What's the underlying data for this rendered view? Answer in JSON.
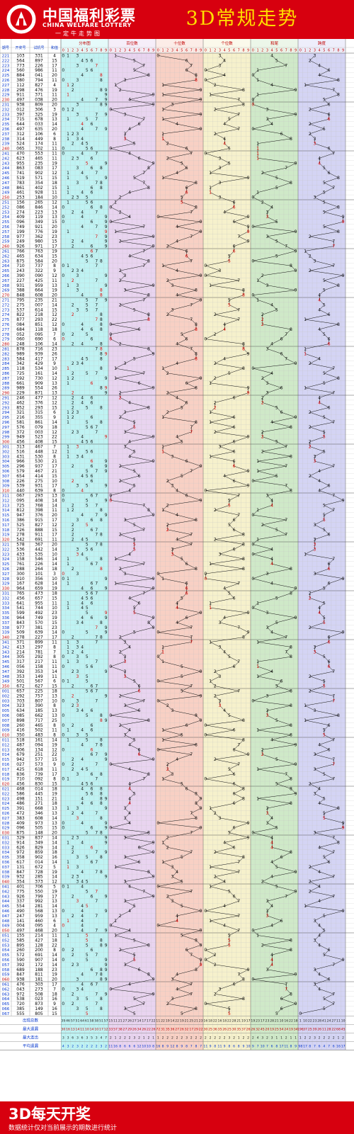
{
  "header": {
    "brand_cn": "中国福利彩票",
    "brand_en": "CHINA WELFARE LOTTERY",
    "brand_sub": "一定牛走势图",
    "title": "3D常规走势"
  },
  "footer": {
    "title": "3D每天开奖",
    "note": "数据统计仅对当前展示的期数进行统计"
  },
  "colors": {
    "brand_red": "#d7000f",
    "title_yellow": "#ffdd00",
    "dist_bg": "#bff3f3",
    "hundreds_bg": "#e9d4f0",
    "tens_bg": "#f8d0c4",
    "units_bg": "#f6f1cc",
    "sum_tail_bg": "#cfe9c8",
    "span_bg": "#d4d4f4",
    "hit_red": "#e00000",
    "hit_blue": "#0033cc",
    "line_black": "#111111"
  },
  "chart_data": {
    "type": "table",
    "columns": [
      "期号",
      "开奖号",
      "试机号",
      "和值"
    ],
    "sections": [
      "分布图",
      "百位数",
      "十位数",
      "个位数",
      "和尾",
      "跨度"
    ],
    "digit_header": [
      "0",
      "1",
      "2",
      "3",
      "4",
      "5",
      "6",
      "7",
      "8",
      "9"
    ],
    "stats_labels": [
      "出现总数",
      "最大遗漏",
      "最大连出",
      "平均遗漏"
    ],
    "rows": [
      {
        "p": "221",
        "d": "103",
        "t": "331",
        "s": "4"
      },
      {
        "p": "222",
        "d": "564",
        "t": "897",
        "s": "15"
      },
      {
        "p": "223",
        "d": "773",
        "t": "226",
        "s": "17"
      },
      {
        "p": "224",
        "d": "560",
        "t": "986",
        "s": "11"
      },
      {
        "p": "225",
        "d": "884",
        "t": "041",
        "s": "20"
      },
      {
        "p": "226",
        "d": "380",
        "t": "794",
        "s": "11"
      },
      {
        "p": "227",
        "d": "112",
        "t": "827",
        "s": "4"
      },
      {
        "p": "228",
        "d": "298",
        "t": "476",
        "s": "19"
      },
      {
        "p": "229",
        "d": "911",
        "t": "371",
        "s": "11"
      },
      {
        "p": "230",
        "d": "497",
        "t": "038",
        "s": "20"
      },
      {
        "p": "231",
        "d": "938",
        "t": "809",
        "s": "20"
      },
      {
        "p": "232",
        "d": "012",
        "t": "306",
        "s": "3"
      },
      {
        "p": "233",
        "d": "397",
        "t": "325",
        "s": "19"
      },
      {
        "p": "234",
        "d": "715",
        "t": "678",
        "s": "13"
      },
      {
        "p": "235",
        "d": "644",
        "t": "033",
        "s": "14"
      },
      {
        "p": "236",
        "d": "497",
        "t": "635",
        "s": "20"
      },
      {
        "p": "237",
        "d": "312",
        "t": "106",
        "s": "6"
      },
      {
        "p": "238",
        "d": "314",
        "t": "449",
        "s": "8"
      },
      {
        "p": "239",
        "d": "524",
        "t": "174",
        "s": "11"
      },
      {
        "p": "240",
        "d": "065",
        "t": "702",
        "s": "11"
      },
      {
        "p": "241",
        "d": "470",
        "t": "553",
        "s": "11"
      },
      {
        "p": "242",
        "d": "623",
        "t": "465",
        "s": "11"
      },
      {
        "p": "243",
        "d": "955",
        "t": "235",
        "s": "19"
      },
      {
        "p": "244",
        "d": "863",
        "t": "083",
        "s": "17"
      },
      {
        "p": "245",
        "d": "741",
        "t": "902",
        "s": "12"
      },
      {
        "p": "246",
        "d": "519",
        "t": "571",
        "s": "15"
      },
      {
        "p": "247",
        "d": "783",
        "t": "354",
        "s": "18"
      },
      {
        "p": "248",
        "d": "861",
        "t": "402",
        "s": "15"
      },
      {
        "p": "249",
        "d": "461",
        "t": "928",
        "s": "11"
      },
      {
        "p": "250",
        "d": "253",
        "t": "184",
        "s": "10"
      },
      {
        "p": "251",
        "d": "156",
        "t": "265",
        "s": "12"
      },
      {
        "p": "252",
        "d": "086",
        "t": "846",
        "s": "14"
      },
      {
        "p": "253",
        "d": "274",
        "t": "223",
        "s": "13"
      },
      {
        "p": "254",
        "d": "409",
        "t": "119",
        "s": "13"
      },
      {
        "p": "255",
        "d": "096",
        "t": "349",
        "s": "15"
      },
      {
        "p": "256",
        "d": "749",
        "t": "921",
        "s": "20"
      },
      {
        "p": "257",
        "d": "199",
        "t": "776",
        "s": "19"
      },
      {
        "p": "258",
        "d": "977",
        "t": "362",
        "s": "23"
      },
      {
        "p": "259",
        "d": "249",
        "t": "980",
        "s": "15"
      },
      {
        "p": "260",
        "d": "926",
        "t": "971",
        "s": "17"
      },
      {
        "p": "261",
        "d": "766",
        "t": "763",
        "s": "19"
      },
      {
        "p": "262",
        "d": "465",
        "t": "634",
        "s": "15"
      },
      {
        "p": "263",
        "d": "875",
        "t": "584",
        "s": "20"
      },
      {
        "p": "264",
        "d": "710",
        "t": "737",
        "s": "8"
      },
      {
        "p": "265",
        "d": "243",
        "t": "322",
        "s": "9"
      },
      {
        "p": "266",
        "d": "390",
        "t": "090",
        "s": "12"
      },
      {
        "p": "267",
        "d": "227",
        "t": "425",
        "s": "11"
      },
      {
        "p": "268",
        "d": "931",
        "t": "959",
        "s": "13"
      },
      {
        "p": "269",
        "d": "388",
        "t": "664",
        "s": "19"
      },
      {
        "p": "270",
        "d": "848",
        "t": "608",
        "s": "20"
      },
      {
        "p": "271",
        "d": "795",
        "t": "235",
        "s": "21"
      },
      {
        "p": "272",
        "d": "275",
        "t": "007",
        "s": "14"
      },
      {
        "p": "273",
        "d": "537",
        "t": "614",
        "s": "15"
      },
      {
        "p": "274",
        "d": "822",
        "t": "218",
        "s": "12"
      },
      {
        "p": "275",
        "d": "877",
        "t": "293",
        "s": "22"
      },
      {
        "p": "276",
        "d": "084",
        "t": "851",
        "s": "12"
      },
      {
        "p": "277",
        "d": "684",
        "t": "118",
        "s": "18"
      },
      {
        "p": "278",
        "d": "052",
        "t": "095",
        "s": "7"
      },
      {
        "p": "279",
        "d": "060",
        "t": "690",
        "s": "6"
      },
      {
        "p": "280",
        "d": "248",
        "t": "106",
        "s": "14"
      },
      {
        "p": "281",
        "d": "878",
        "t": "716",
        "s": "23"
      },
      {
        "p": "282",
        "d": "989",
        "t": "939",
        "s": "26"
      },
      {
        "p": "283",
        "d": "584",
        "t": "417",
        "s": "17"
      },
      {
        "p": "284",
        "d": "342",
        "t": "429",
        "s": "9"
      },
      {
        "p": "285",
        "d": "118",
        "t": "534",
        "s": "10"
      },
      {
        "p": "286",
        "d": "725",
        "t": "161",
        "s": "14"
      },
      {
        "p": "287",
        "d": "192",
        "t": "730",
        "s": "12"
      },
      {
        "p": "288",
        "d": "661",
        "t": "909",
        "s": "13"
      },
      {
        "p": "289",
        "d": "989",
        "t": "554",
        "s": "26"
      },
      {
        "p": "290",
        "d": "229",
        "t": "871",
        "s": "13"
      },
      {
        "p": "291",
        "d": "246",
        "t": "477",
        "s": "12"
      },
      {
        "p": "292",
        "d": "462",
        "t": "376",
        "s": "12"
      },
      {
        "p": "293",
        "d": "852",
        "t": "293",
        "s": "15"
      },
      {
        "p": "294",
        "d": "321",
        "t": "315",
        "s": "6"
      },
      {
        "p": "295",
        "d": "216",
        "t": "355",
        "s": "9"
      },
      {
        "p": "296",
        "d": "581",
        "t": "861",
        "s": "14"
      },
      {
        "p": "297",
        "d": "576",
        "t": "079",
        "s": "18"
      },
      {
        "p": "298",
        "d": "372",
        "t": "003",
        "s": "12"
      },
      {
        "p": "299",
        "d": "949",
        "t": "523",
        "s": "22"
      },
      {
        "p": "300",
        "d": "456",
        "t": "408",
        "s": "15"
      },
      {
        "p": "301",
        "d": "313",
        "t": "467",
        "s": "7"
      },
      {
        "p": "302",
        "d": "516",
        "t": "448",
        "s": "12"
      },
      {
        "p": "303",
        "d": "431",
        "t": "530",
        "s": "8"
      },
      {
        "p": "304",
        "d": "966",
        "t": "530",
        "s": "21"
      },
      {
        "p": "305",
        "d": "296",
        "t": "937",
        "s": "17"
      },
      {
        "p": "306",
        "d": "579",
        "t": "467",
        "s": "21"
      },
      {
        "p": "307",
        "d": "654",
        "t": "414",
        "s": "15"
      },
      {
        "p": "308",
        "d": "226",
        "t": "275",
        "s": "10"
      },
      {
        "p": "309",
        "d": "539",
        "t": "931",
        "s": "17"
      },
      {
        "p": "310",
        "d": "440",
        "t": "639",
        "s": "8"
      },
      {
        "p": "311",
        "d": "067",
        "t": "293",
        "s": "13"
      },
      {
        "p": "312",
        "d": "095",
        "t": "408",
        "s": "14"
      },
      {
        "p": "313",
        "d": "725",
        "t": "768",
        "s": "14"
      },
      {
        "p": "314",
        "d": "812",
        "t": "398",
        "s": "11"
      },
      {
        "p": "315",
        "d": "947",
        "t": "376",
        "s": "20"
      },
      {
        "p": "316",
        "d": "386",
        "t": "915",
        "s": "17"
      },
      {
        "p": "317",
        "d": "525",
        "t": "827",
        "s": "12"
      },
      {
        "p": "318",
        "d": "726",
        "t": "888",
        "s": "15"
      },
      {
        "p": "319",
        "d": "278",
        "t": "911",
        "s": "17"
      },
      {
        "p": "320",
        "d": "542",
        "t": "691",
        "s": "11"
      },
      {
        "p": "321",
        "d": "578",
        "t": "367",
        "s": "20"
      },
      {
        "p": "322",
        "d": "536",
        "t": "442",
        "s": "14"
      },
      {
        "p": "323",
        "d": "433",
        "t": "535",
        "s": "10"
      },
      {
        "p": "324",
        "d": "158",
        "t": "546",
        "s": "14"
      },
      {
        "p": "325",
        "d": "761",
        "t": "226",
        "s": "14"
      },
      {
        "p": "326",
        "d": "288",
        "t": "264",
        "s": "18"
      },
      {
        "p": "327",
        "d": "300",
        "t": "101",
        "s": "3"
      },
      {
        "p": "328",
        "d": "910",
        "t": "356",
        "s": "10"
      },
      {
        "p": "329",
        "d": "167",
        "t": "628",
        "s": "14"
      },
      {
        "p": "330",
        "d": "964",
        "t": "659",
        "s": "19"
      },
      {
        "p": "331",
        "d": "765",
        "t": "473",
        "s": "18"
      },
      {
        "p": "332",
        "d": "456",
        "t": "657",
        "s": "15"
      },
      {
        "p": "333",
        "d": "641",
        "t": "955",
        "s": "11"
      },
      {
        "p": "334",
        "d": "541",
        "t": "744",
        "s": "10"
      },
      {
        "p": "335",
        "d": "599",
        "t": "492",
        "s": "23"
      },
      {
        "p": "336",
        "d": "964",
        "t": "749",
        "s": "19"
      },
      {
        "p": "337",
        "d": "843",
        "t": "570",
        "s": "15"
      },
      {
        "p": "338",
        "d": "977",
        "t": "381",
        "s": "23"
      },
      {
        "p": "339",
        "d": "509",
        "t": "639",
        "s": "14"
      },
      {
        "p": "340",
        "d": "278",
        "t": "227",
        "s": "17"
      },
      {
        "p": "341",
        "d": "371",
        "t": "899",
        "s": "11"
      },
      {
        "p": "342",
        "d": "413",
        "t": "297",
        "s": "8"
      },
      {
        "p": "343",
        "d": "214",
        "t": "781",
        "s": "7"
      },
      {
        "p": "344",
        "d": "305",
        "t": "292",
        "s": "8"
      },
      {
        "p": "345",
        "d": "317",
        "t": "217",
        "s": "11"
      },
      {
        "p": "346",
        "d": "056",
        "t": "158",
        "s": "11"
      },
      {
        "p": "347",
        "d": "392",
        "t": "353",
        "s": "14"
      },
      {
        "p": "348",
        "d": "353",
        "t": "149",
        "s": "11"
      },
      {
        "p": "349",
        "d": "501",
        "t": "567",
        "s": "6"
      },
      {
        "p": "350",
        "d": "672",
        "t": "627",
        "s": "15"
      },
      {
        "p": "001",
        "d": "657",
        "t": "225",
        "s": "18"
      },
      {
        "p": "002",
        "d": "292",
        "t": "757",
        "s": "13"
      },
      {
        "p": "003",
        "d": "703",
        "t": "807",
        "s": "10"
      },
      {
        "p": "004",
        "d": "323",
        "t": "390",
        "s": "8"
      },
      {
        "p": "005",
        "d": "634",
        "t": "185",
        "s": "13"
      },
      {
        "p": "006",
        "d": "085",
        "t": "662",
        "s": "13"
      },
      {
        "p": "007",
        "d": "898",
        "t": "717",
        "s": "25"
      },
      {
        "p": "008",
        "d": "260",
        "t": "465",
        "s": "8"
      },
      {
        "p": "009",
        "d": "416",
        "t": "502",
        "s": "11"
      },
      {
        "p": "010",
        "d": "350",
        "t": "483",
        "s": "8"
      },
      {
        "p": "011",
        "d": "518",
        "t": "161",
        "s": "14"
      },
      {
        "p": "012",
        "d": "487",
        "t": "094",
        "s": "19"
      },
      {
        "p": "013",
        "d": "606",
        "t": "134",
        "s": "12"
      },
      {
        "p": "014",
        "d": "679",
        "t": "251",
        "s": "22"
      },
      {
        "p": "015",
        "d": "942",
        "t": "577",
        "s": "15"
      },
      {
        "p": "016",
        "d": "027",
        "t": "573",
        "s": "9"
      },
      {
        "p": "017",
        "d": "425",
        "t": "618",
        "s": "11"
      },
      {
        "p": "018",
        "d": "836",
        "t": "739",
        "s": "17"
      },
      {
        "p": "019",
        "d": "710",
        "t": "092",
        "s": "8"
      },
      {
        "p": "020",
        "d": "456",
        "t": "830",
        "s": "15"
      },
      {
        "p": "021",
        "d": "468",
        "t": "014",
        "s": "18"
      },
      {
        "p": "022",
        "d": "586",
        "t": "445",
        "s": "19"
      },
      {
        "p": "023",
        "d": "498",
        "t": "151",
        "s": "21"
      },
      {
        "p": "024",
        "d": "486",
        "t": "271",
        "s": "18"
      },
      {
        "p": "025",
        "d": "391",
        "t": "668",
        "s": "13"
      },
      {
        "p": "026",
        "d": "472",
        "t": "346",
        "s": "13"
      },
      {
        "p": "027",
        "d": "383",
        "t": "608",
        "s": "14"
      },
      {
        "p": "028",
        "d": "409",
        "t": "973",
        "s": "13"
      },
      {
        "p": "029",
        "d": "096",
        "t": "505",
        "s": "15"
      },
      {
        "p": "030",
        "d": "875",
        "t": "148",
        "s": "20"
      },
      {
        "p": "031",
        "d": "329",
        "t": "837",
        "s": "14"
      },
      {
        "p": "032",
        "d": "914",
        "t": "349",
        "s": "14"
      },
      {
        "p": "033",
        "d": "626",
        "t": "829",
        "s": "14"
      },
      {
        "p": "034",
        "d": "972",
        "t": "859",
        "s": "18"
      },
      {
        "p": "035",
        "d": "358",
        "t": "902",
        "s": "16"
      },
      {
        "p": "036",
        "d": "617",
        "t": "014",
        "s": "14"
      },
      {
        "p": "037",
        "d": "131",
        "t": "672",
        "s": "5"
      },
      {
        "p": "038",
        "d": "847",
        "t": "728",
        "s": "19"
      },
      {
        "p": "039",
        "d": "932",
        "t": "285",
        "s": "14"
      },
      {
        "p": "040",
        "d": "354",
        "t": "373",
        "s": "12"
      },
      {
        "p": "041",
        "d": "401",
        "t": "706",
        "s": "5"
      },
      {
        "p": "042",
        "d": "775",
        "t": "550",
        "s": "19"
      },
      {
        "p": "043",
        "d": "926",
        "t": "799",
        "s": "17"
      },
      {
        "p": "044",
        "d": "337",
        "t": "992",
        "s": "13"
      },
      {
        "p": "045",
        "d": "554",
        "t": "281",
        "s": "14"
      },
      {
        "p": "046",
        "d": "490",
        "t": "568",
        "s": "13"
      },
      {
        "p": "047",
        "d": "247",
        "t": "959",
        "s": "13"
      },
      {
        "p": "048",
        "d": "141",
        "t": "460",
        "s": "6"
      },
      {
        "p": "049",
        "d": "004",
        "t": "095",
        "s": "4"
      },
      {
        "p": "050",
        "d": "497",
        "t": "468",
        "s": "20"
      },
      {
        "p": "051",
        "d": "155",
        "t": "214",
        "s": "11"
      },
      {
        "p": "052",
        "d": "585",
        "t": "427",
        "s": "18"
      },
      {
        "p": "053",
        "d": "895",
        "t": "128",
        "s": "22"
      },
      {
        "p": "054",
        "d": "260",
        "t": "200",
        "s": "8"
      },
      {
        "p": "055",
        "d": "572",
        "t": "691",
        "s": "14"
      },
      {
        "p": "056",
        "d": "590",
        "t": "907",
        "s": "14"
      },
      {
        "p": "057",
        "d": "392",
        "t": "172",
        "s": "14"
      },
      {
        "p": "058",
        "d": "689",
        "t": "188",
        "s": "23"
      },
      {
        "p": "059",
        "d": "847",
        "t": "811",
        "s": "19"
      },
      {
        "p": "060",
        "d": "938",
        "t": "181",
        "s": "20"
      },
      {
        "p": "061",
        "d": "476",
        "t": "303",
        "s": "17"
      },
      {
        "p": "062",
        "d": "043",
        "t": "273",
        "s": "7"
      },
      {
        "p": "063",
        "d": "972",
        "t": "508",
        "s": "18"
      },
      {
        "p": "064",
        "d": "538",
        "t": "023",
        "s": "16"
      },
      {
        "p": "065",
        "d": "720",
        "t": "873",
        "s": "9"
      },
      {
        "p": "066",
        "d": "385",
        "t": "149",
        "s": "16"
      },
      {
        "p": "067",
        "d": "555",
        "t": "805",
        "s": "15"
      }
    ]
  }
}
